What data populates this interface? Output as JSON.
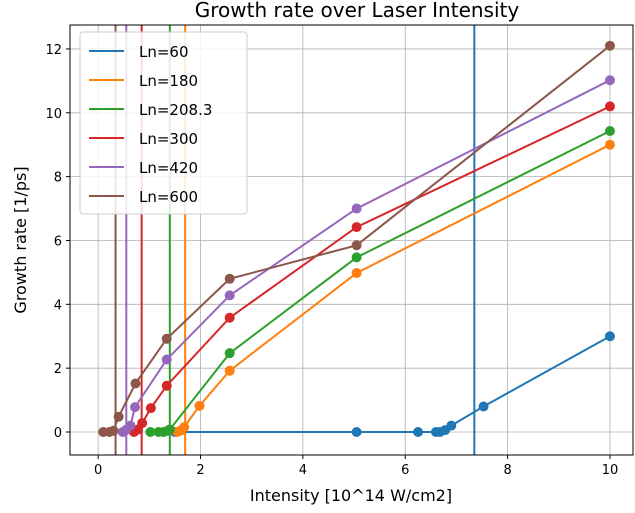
{
  "chart_data": {
    "type": "line",
    "title": "Growth rate over Laser Intensity",
    "xlabel": "Intensity [10^14 W/cm2]",
    "ylabel": "Growth rate [1/ps]",
    "xlim": [
      -0.55,
      10.45
    ],
    "ylim": [
      -0.72,
      12.75
    ],
    "xticks": [
      0,
      2,
      4,
      6,
      8,
      10
    ],
    "yticks": [
      0,
      2,
      4,
      6,
      8,
      10,
      12
    ],
    "grid": true,
    "legend_position": "top-left",
    "series": [
      {
        "name": "Ln=60",
        "color": "#1f77b4",
        "threshold": 7.35,
        "x": [
          1.5,
          5.05,
          6.25,
          6.6,
          6.68,
          6.78,
          6.9,
          7.53,
          10.0
        ],
        "y": [
          0.0,
          0.0,
          0.0,
          0.0,
          0.0,
          0.06,
          0.2,
          0.8,
          3.0
        ]
      },
      {
        "name": "Ln=180",
        "color": "#ff7f0e",
        "threshold": 1.7,
        "x": [
          1.55,
          1.62,
          1.68,
          1.98,
          2.57,
          5.05,
          10.0
        ],
        "y": [
          0.0,
          0.05,
          0.15,
          0.82,
          1.92,
          4.98,
          9.0
        ]
      },
      {
        "name": "Ln=208.3",
        "color": "#2ca02c",
        "threshold": 1.4,
        "x": [
          1.02,
          1.18,
          1.28,
          1.36,
          1.4,
          2.57,
          5.05,
          10.0
        ],
        "y": [
          0.0,
          0.0,
          0.0,
          0.04,
          0.08,
          2.47,
          5.47,
          9.43
        ]
      },
      {
        "name": "Ln=300",
        "color": "#d62728",
        "threshold": 0.85,
        "x": [
          0.7,
          0.78,
          0.86,
          1.03,
          1.34,
          2.57,
          5.05,
          10.0
        ],
        "y": [
          0.0,
          0.08,
          0.28,
          0.75,
          1.45,
          3.58,
          6.42,
          10.2
        ]
      },
      {
        "name": "Ln=420",
        "color": "#9467bd",
        "threshold": 0.55,
        "x": [
          0.48,
          0.55,
          0.63,
          0.72,
          1.34,
          2.57,
          5.05,
          10.0
        ],
        "y": [
          0.0,
          0.07,
          0.2,
          0.78,
          2.27,
          4.28,
          7.0,
          11.02
        ]
      },
      {
        "name": "Ln=600",
        "color": "#8c564b",
        "threshold": 0.34,
        "x": [
          0.1,
          0.22,
          0.3,
          0.4,
          0.73,
          1.34,
          2.57,
          5.05,
          10.0
        ],
        "y": [
          0.0,
          0.0,
          0.04,
          0.48,
          1.52,
          2.92,
          4.8,
          5.85,
          12.1
        ]
      }
    ]
  }
}
